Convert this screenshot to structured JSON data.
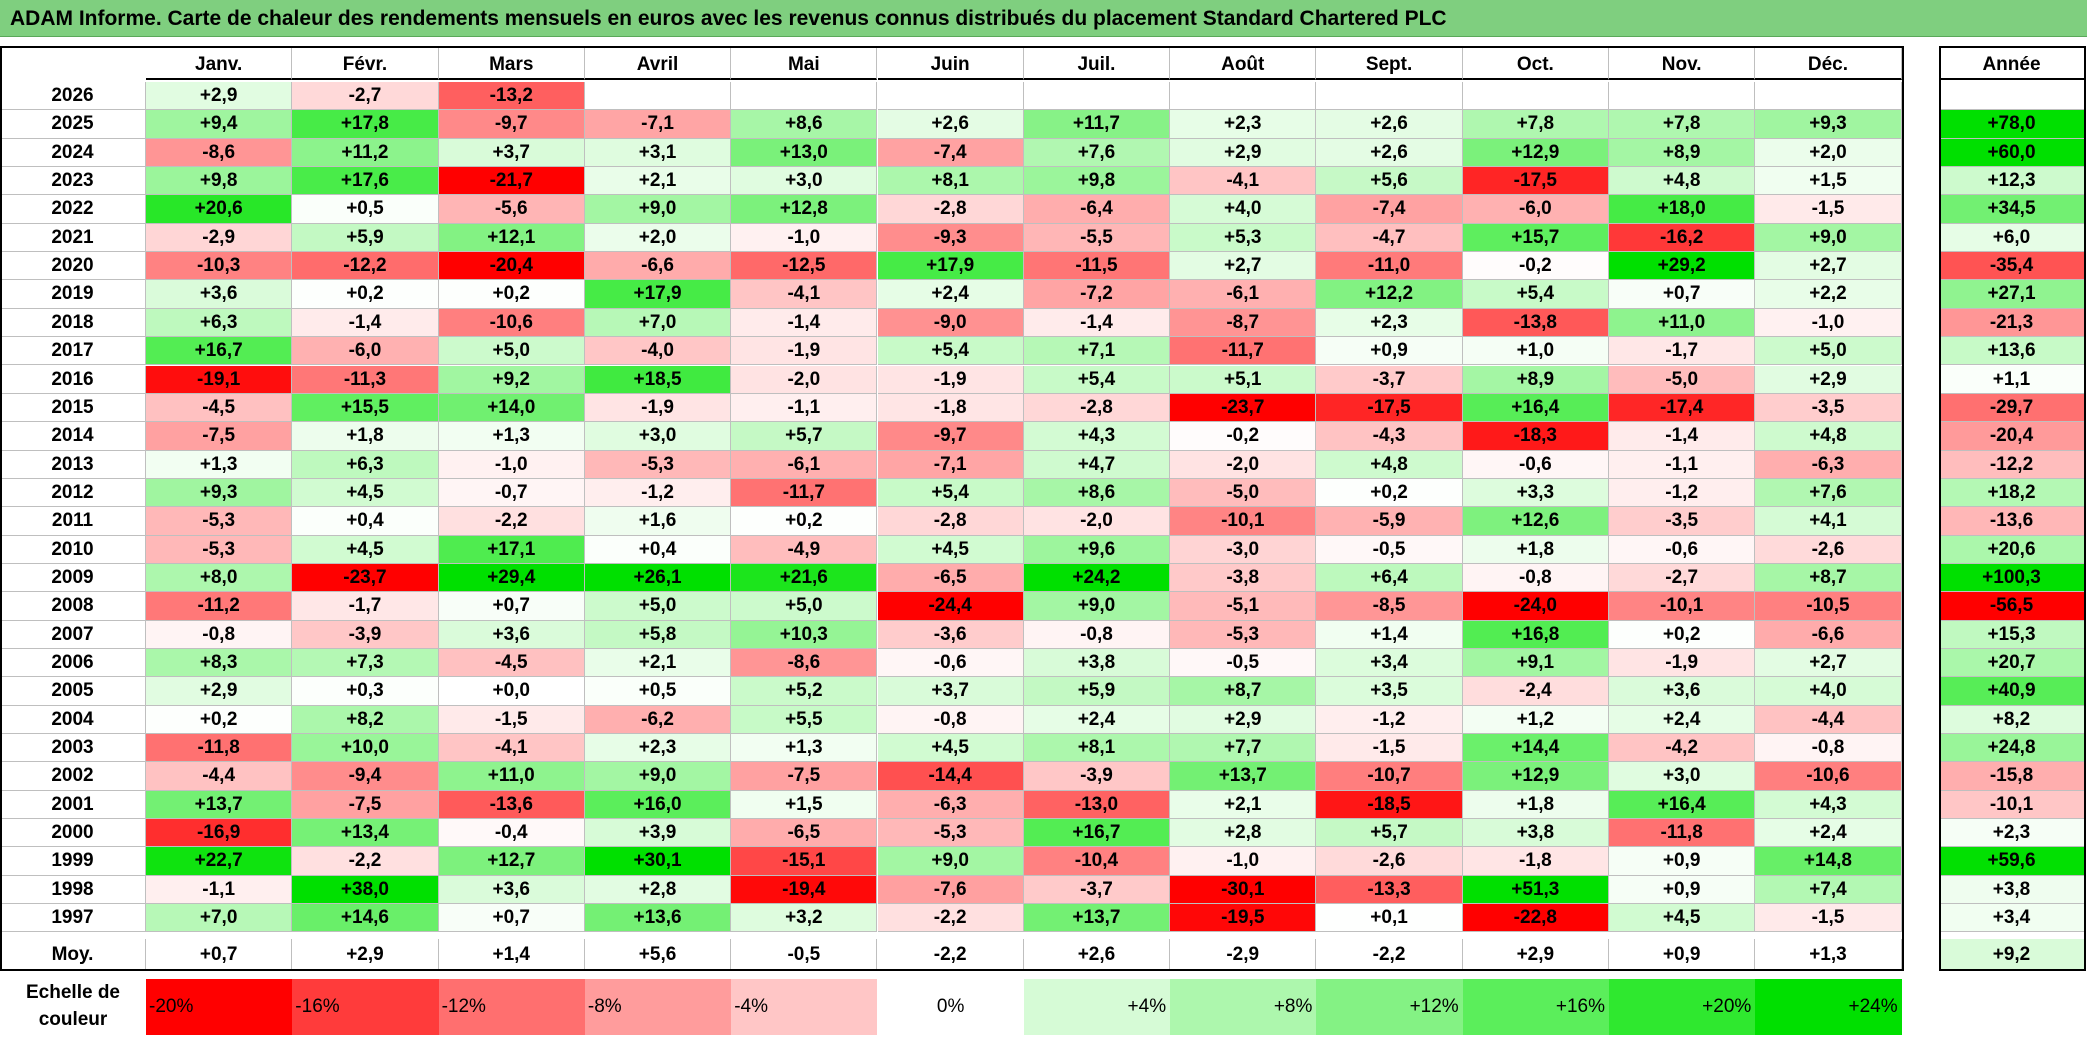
{
  "title": "ADAM Informe. Carte de chaleur des rendements mensuels en euros avec les revenus connus distribués du placement Standard Chartered PLC",
  "chart_data": {
    "type": "heatmap",
    "months": [
      "Janv.",
      "Févr.",
      "Mars",
      "Avril",
      "Mai",
      "Juin",
      "Juil.",
      "Août",
      "Sept.",
      "Oct.",
      "Nov.",
      "Déc."
    ],
    "year_header": "Année",
    "rows": [
      {
        "year": "2026",
        "values": [
          "+2,9",
          "-2,7",
          "-13,2",
          "",
          "",
          "",
          "",
          "",
          "",
          "",
          "",
          ""
        ],
        "annual": ""
      },
      {
        "year": "2025",
        "values": [
          "+9,4",
          "+17,8",
          "-9,7",
          "-7,1",
          "+8,6",
          "+2,6",
          "+11,7",
          "+2,3",
          "+2,6",
          "+7,8",
          "+7,8",
          "+9,3"
        ],
        "annual": "+78,0"
      },
      {
        "year": "2024",
        "values": [
          "-8,6",
          "+11,2",
          "+3,7",
          "+3,1",
          "+13,0",
          "-7,4",
          "+7,6",
          "+2,9",
          "+2,6",
          "+12,9",
          "+8,9",
          "+2,0"
        ],
        "annual": "+60,0"
      },
      {
        "year": "2023",
        "values": [
          "+9,8",
          "+17,6",
          "-21,7",
          "+2,1",
          "+3,0",
          "+8,1",
          "+9,8",
          "-4,1",
          "+5,6",
          "-17,5",
          "+4,8",
          "+1,5"
        ],
        "annual": "+12,3"
      },
      {
        "year": "2022",
        "values": [
          "+20,6",
          "+0,5",
          "-5,6",
          "+9,0",
          "+12,8",
          "-2,8",
          "-6,4",
          "+4,0",
          "-7,4",
          "-6,0",
          "+18,0",
          "-1,5"
        ],
        "annual": "+34,5"
      },
      {
        "year": "2021",
        "values": [
          "-2,9",
          "+5,9",
          "+12,1",
          "+2,0",
          "-1,0",
          "-9,3",
          "-5,5",
          "+5,3",
          "-4,7",
          "+15,7",
          "-16,2",
          "+9,0"
        ],
        "annual": "+6,0"
      },
      {
        "year": "2020",
        "values": [
          "-10,3",
          "-12,2",
          "-20,4",
          "-6,6",
          "-12,5",
          "+17,9",
          "-11,5",
          "+2,7",
          "-11,0",
          "-0,2",
          "+29,2",
          "+2,7"
        ],
        "annual": "-35,4"
      },
      {
        "year": "2019",
        "values": [
          "+3,6",
          "+0,2",
          "+0,2",
          "+17,9",
          "-4,1",
          "+2,4",
          "-7,2",
          "-6,1",
          "+12,2",
          "+5,4",
          "+0,7",
          "+2,2"
        ],
        "annual": "+27,1"
      },
      {
        "year": "2018",
        "values": [
          "+6,3",
          "-1,4",
          "-10,6",
          "+7,0",
          "-1,4",
          "-9,0",
          "-1,4",
          "-8,7",
          "+2,3",
          "-13,8",
          "+11,0",
          "-1,0"
        ],
        "annual": "-21,3"
      },
      {
        "year": "2017",
        "values": [
          "+16,7",
          "-6,0",
          "+5,0",
          "-4,0",
          "-1,9",
          "+5,4",
          "+7,1",
          "-11,7",
          "+0,9",
          "+1,0",
          "-1,7",
          "+5,0"
        ],
        "annual": "+13,6"
      },
      {
        "year": "2016",
        "values": [
          "-19,1",
          "-11,3",
          "+9,2",
          "+18,5",
          "-2,0",
          "-1,9",
          "+5,4",
          "+5,1",
          "-3,7",
          "+8,9",
          "-5,0",
          "+2,9"
        ],
        "annual": "+1,1"
      },
      {
        "year": "2015",
        "values": [
          "-4,5",
          "+15,5",
          "+14,0",
          "-1,9",
          "-1,1",
          "-1,8",
          "-2,8",
          "-23,7",
          "-17,5",
          "+16,4",
          "-17,4",
          "-3,5"
        ],
        "annual": "-29,7"
      },
      {
        "year": "2014",
        "values": [
          "-7,5",
          "+1,8",
          "+1,3",
          "+3,0",
          "+5,7",
          "-9,7",
          "+4,3",
          "-0,2",
          "-4,3",
          "-18,3",
          "-1,4",
          "+4,8"
        ],
        "annual": "-20,4"
      },
      {
        "year": "2013",
        "values": [
          "+1,3",
          "+6,3",
          "-1,0",
          "-5,3",
          "-6,1",
          "-7,1",
          "+4,7",
          "-2,0",
          "+4,8",
          "-0,6",
          "-1,1",
          "-6,3"
        ],
        "annual": "-12,2"
      },
      {
        "year": "2012",
        "values": [
          "+9,3",
          "+4,5",
          "-0,7",
          "-1,2",
          "-11,7",
          "+5,4",
          "+8,6",
          "-5,0",
          "+0,2",
          "+3,3",
          "-1,2",
          "+7,6"
        ],
        "annual": "+18,2"
      },
      {
        "year": "2011",
        "values": [
          "-5,3",
          "+0,4",
          "-2,2",
          "+1,6",
          "+0,2",
          "-2,8",
          "-2,0",
          "-10,1",
          "-5,9",
          "+12,6",
          "-3,5",
          "+4,1"
        ],
        "annual": "-13,6"
      },
      {
        "year": "2010",
        "values": [
          "-5,3",
          "+4,5",
          "+17,1",
          "+0,4",
          "-4,9",
          "+4,5",
          "+9,6",
          "-3,0",
          "-0,5",
          "+1,8",
          "-0,6",
          "-2,6"
        ],
        "annual": "+20,6"
      },
      {
        "year": "2009",
        "values": [
          "+8,0",
          "-23,7",
          "+29,4",
          "+26,1",
          "+21,6",
          "-6,5",
          "+24,2",
          "-3,8",
          "+6,4",
          "-0,8",
          "-2,7",
          "+8,7"
        ],
        "annual": "+100,3"
      },
      {
        "year": "2008",
        "values": [
          "-11,2",
          "-1,7",
          "+0,7",
          "+5,0",
          "+5,0",
          "-24,4",
          "+9,0",
          "-5,1",
          "-8,5",
          "-24,0",
          "-10,1",
          "-10,5"
        ],
        "annual": "-56,5"
      },
      {
        "year": "2007",
        "values": [
          "-0,8",
          "-3,9",
          "+3,6",
          "+5,8",
          "+10,3",
          "-3,6",
          "-0,8",
          "-5,3",
          "+1,4",
          "+16,8",
          "+0,2",
          "-6,6"
        ],
        "annual": "+15,3"
      },
      {
        "year": "2006",
        "values": [
          "+8,3",
          "+7,3",
          "-4,5",
          "+2,1",
          "-8,6",
          "-0,6",
          "+3,8",
          "-0,5",
          "+3,4",
          "+9,1",
          "-1,9",
          "+2,7"
        ],
        "annual": "+20,7"
      },
      {
        "year": "2005",
        "values": [
          "+2,9",
          "+0,3",
          "+0,0",
          "+0,5",
          "+5,2",
          "+3,7",
          "+5,9",
          "+8,7",
          "+3,5",
          "-2,4",
          "+3,6",
          "+4,0"
        ],
        "annual": "+40,9"
      },
      {
        "year": "2004",
        "values": [
          "+0,2",
          "+8,2",
          "-1,5",
          "-6,2",
          "+5,5",
          "-0,8",
          "+2,4",
          "+2,9",
          "-1,2",
          "+1,2",
          "+2,4",
          "-4,4"
        ],
        "annual": "+8,2"
      },
      {
        "year": "2003",
        "values": [
          "-11,8",
          "+10,0",
          "-4,1",
          "+2,3",
          "+1,3",
          "+4,5",
          "+8,1",
          "+7,7",
          "-1,5",
          "+14,4",
          "-4,2",
          "-0,8"
        ],
        "annual": "+24,8"
      },
      {
        "year": "2002",
        "values": [
          "-4,4",
          "-9,4",
          "+11,0",
          "+9,0",
          "-7,5",
          "-14,4",
          "-3,9",
          "+13,7",
          "-10,7",
          "+12,9",
          "+3,0",
          "-10,6"
        ],
        "annual": "-15,8"
      },
      {
        "year": "2001",
        "values": [
          "+13,7",
          "-7,5",
          "-13,6",
          "+16,0",
          "+1,5",
          "-6,3",
          "-13,0",
          "+2,1",
          "-18,5",
          "+1,8",
          "+16,4",
          "+4,3"
        ],
        "annual": "-10,1"
      },
      {
        "year": "2000",
        "values": [
          "-16,9",
          "+13,4",
          "-0,4",
          "+3,9",
          "-6,5",
          "-5,3",
          "+16,7",
          "+2,8",
          "+5,7",
          "+3,8",
          "-11,8",
          "+2,4"
        ],
        "annual": "+2,3"
      },
      {
        "year": "1999",
        "values": [
          "+22,7",
          "-2,2",
          "+12,7",
          "+30,1",
          "-15,1",
          "+9,0",
          "-10,4",
          "-1,0",
          "-2,6",
          "-1,8",
          "+0,9",
          "+14,8"
        ],
        "annual": "+59,6"
      },
      {
        "year": "1998",
        "values": [
          "-1,1",
          "+38,0",
          "+3,6",
          "+2,8",
          "-19,4",
          "-7,6",
          "-3,7",
          "-30,1",
          "-13,3",
          "+51,3",
          "+0,9",
          "+7,4"
        ],
        "annual": "+3,8"
      },
      {
        "year": "1997",
        "values": [
          "+7,0",
          "+14,6",
          "+0,7",
          "+13,6",
          "+3,2",
          "-2,2",
          "+13,7",
          "-19,5",
          "+0,1",
          "-22,8",
          "+4,5",
          "-1,5"
        ],
        "annual": "+3,4"
      }
    ],
    "average_row": {
      "label": "Moy.",
      "values": [
        "+0,7",
        "+2,9",
        "+1,4",
        "+5,6",
        "-0,5",
        "-2,2",
        "+2,6",
        "-2,9",
        "-2,2",
        "+2,9",
        "+0,9",
        "+1,3"
      ],
      "annual": "+9,2"
    },
    "color_scale": {
      "label": "Echelle de couleur",
      "stops": [
        {
          "label": "-20%",
          "value": -20,
          "color": "#ff0000"
        },
        {
          "label": "-16%",
          "value": -16,
          "color": "#ff3b3b"
        },
        {
          "label": "-12%",
          "value": -12,
          "color": "#ff6f6f"
        },
        {
          "label": "-8%",
          "value": -8,
          "color": "#ff9c9c"
        },
        {
          "label": "-4%",
          "value": -4,
          "color": "#ffc6c6"
        },
        {
          "label": "0%",
          "value": 0,
          "color": "#ffffff"
        },
        {
          "label": "+4%",
          "value": 4,
          "color": "#d6fbd6"
        },
        {
          "label": "+8%",
          "value": 8,
          "color": "#adf7ad"
        },
        {
          "label": "+12%",
          "value": 12,
          "color": "#84f284"
        },
        {
          "label": "+16%",
          "value": 16,
          "color": "#5bee5b"
        },
        {
          "label": "+20%",
          "value": 20,
          "color": "#2fe82f"
        },
        {
          "label": "+24%",
          "value": 24,
          "color": "#00e000"
        }
      ]
    }
  }
}
